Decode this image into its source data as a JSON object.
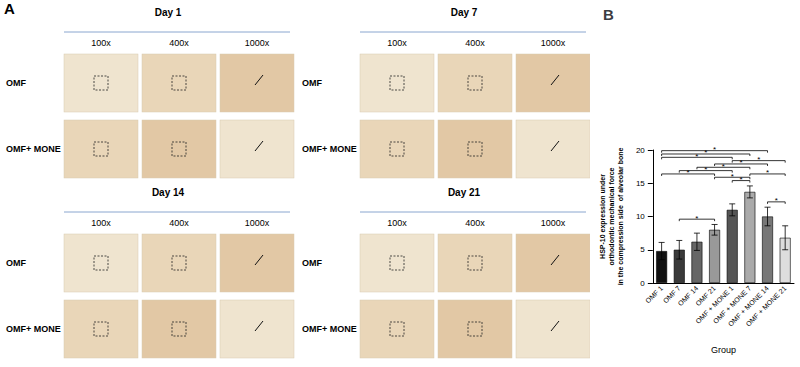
{
  "panel_a": {
    "label": "A",
    "days": [
      "Day 1",
      "Day 7",
      "Day 14",
      "Day 21"
    ],
    "magnifications": [
      "100x",
      "400x",
      "1000x"
    ],
    "rows": [
      "OMF",
      "OMF+ MONE"
    ]
  },
  "chart_data": {
    "type": "bar",
    "label": "B",
    "categories": [
      "OMF 1",
      "OMF 7",
      "OMF 14",
      "OMF 21",
      "OMF + MONE 1",
      "OMF + MONE 7",
      "OMF + MONE 14",
      "OMF + MONE 21"
    ],
    "values": [
      4.8,
      5.0,
      6.2,
      8.0,
      11.0,
      13.7,
      10.0,
      6.8
    ],
    "errors": [
      1.3,
      1.4,
      1.3,
      0.8,
      0.9,
      0.9,
      1.4,
      1.8
    ],
    "colors": [
      "#111111",
      "#3a3a3a",
      "#666666",
      "#999999",
      "#555555",
      "#aaaaaa",
      "#777777",
      "#dddddd"
    ],
    "x_label": "Group",
    "y_label": "HSP-10 expression under\northodontic mechanical force\nin the compression side  of alveolar bone",
    "ylim": [
      0,
      20
    ],
    "yticks": [
      0,
      5,
      10,
      15,
      20
    ],
    "grid": false,
    "comparisons": [
      {
        "from": "OMF 7",
        "to": "OMF 21",
        "label": "*"
      },
      {
        "from": "OMF 1",
        "to": "OMF 21",
        "label": "*"
      },
      {
        "from": "OMF + MONE 14",
        "to": "OMF + MONE 21",
        "label": "*"
      },
      {
        "from": "OMF 1",
        "to": "OMF + MONE 1",
        "label": "*"
      },
      {
        "from": "OMF 7",
        "to": "OMF + MONE 1",
        "label": "*"
      },
      {
        "from": "OMF + MONE 1",
        "to": "OMF + MONE 7",
        "label": "*"
      },
      {
        "from": "OMF 14",
        "to": "OMF + MONE 7",
        "label": "*"
      },
      {
        "from": "OMF 21",
        "to": "OMF + MONE 7",
        "label": "*"
      },
      {
        "from": "OMF + MONE 7",
        "to": "OMF + MONE 21",
        "label": "*"
      },
      {
        "from": "OMF 21",
        "to": "OMF + MONE 14",
        "label": "*"
      },
      {
        "from": "OMF + MONE 1",
        "to": "OMF + MONE 21",
        "label": "*"
      },
      {
        "from": "OMF 1",
        "to": "OMF + MONE 7",
        "label": "*"
      },
      {
        "from": "OMF 1",
        "to": "OMF + MONE 14",
        "label": "*"
      }
    ]
  }
}
